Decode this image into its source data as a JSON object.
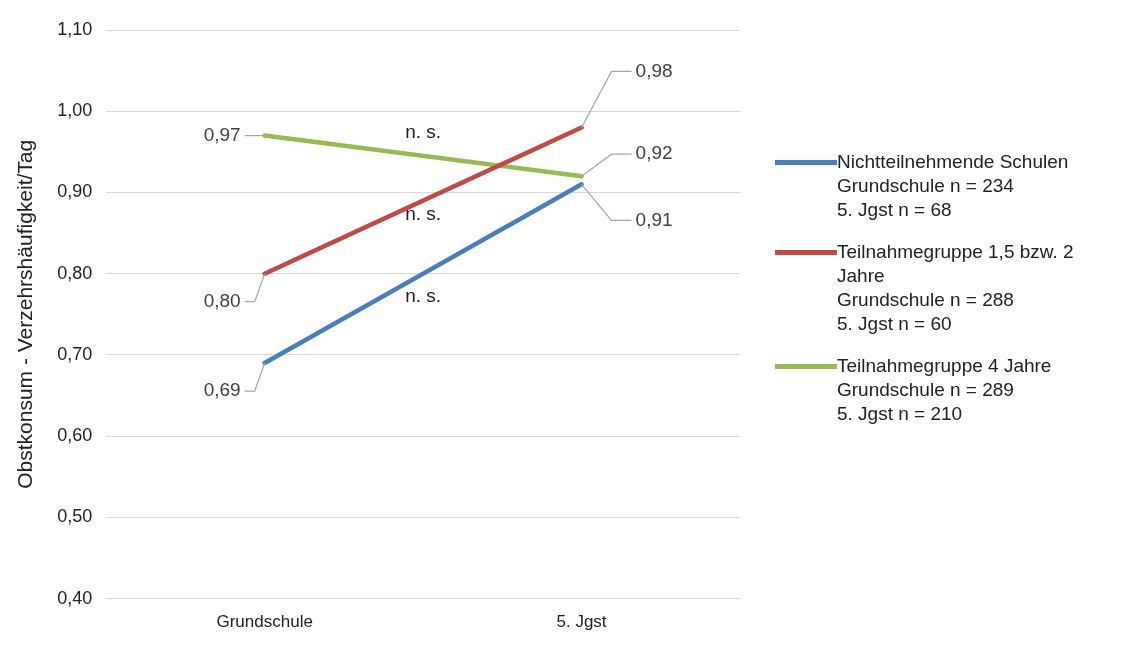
{
  "chart_data": {
    "type": "line",
    "ylabel": "Obstkonsum - Verzehrshäufigkeit/Tag",
    "categories": [
      "Grundschule",
      "5. Jgst"
    ],
    "series": [
      {
        "name": "Nichtteilnehmende Schulen\nGrundschule n = 234\n5. Jgst n = 68",
        "color": "#4a7ebb",
        "values": [
          0.69,
          0.91
        ],
        "value_labels": [
          "0,69",
          "0,91"
        ]
      },
      {
        "name": "Teilnahmegruppe 1,5 bzw. 2 Jahre\nGrundschule n = 288\n5. Jgst n = 60",
        "color": "#be4b48",
        "values": [
          0.8,
          0.98
        ],
        "value_labels": [
          "0,80",
          "0,98"
        ]
      },
      {
        "name": "Teilnahmegruppe 4 Jahre\nGrundschule n = 289\n5. Jgst n = 210",
        "color": "#98b954",
        "values": [
          0.97,
          0.92
        ],
        "value_labels": [
          "0,97",
          "0,92"
        ]
      }
    ],
    "ylim": [
      0.4,
      1.1
    ],
    "yticks": [
      {
        "value": 0.4,
        "label": "0,40"
      },
      {
        "value": 0.5,
        "label": "0,50"
      },
      {
        "value": 0.6,
        "label": "0,60"
      },
      {
        "value": 0.7,
        "label": "0,70"
      },
      {
        "value": 0.8,
        "label": "0,80"
      },
      {
        "value": 0.9,
        "label": "0,90"
      },
      {
        "value": 1.0,
        "label": "1,00"
      },
      {
        "value": 1.1,
        "label": "1,10"
      }
    ],
    "annotations": [
      "n. s.",
      "n. s.",
      "n. s."
    ],
    "grid": "y",
    "legend": "right",
    "marker": "none",
    "line_style": "solid"
  }
}
